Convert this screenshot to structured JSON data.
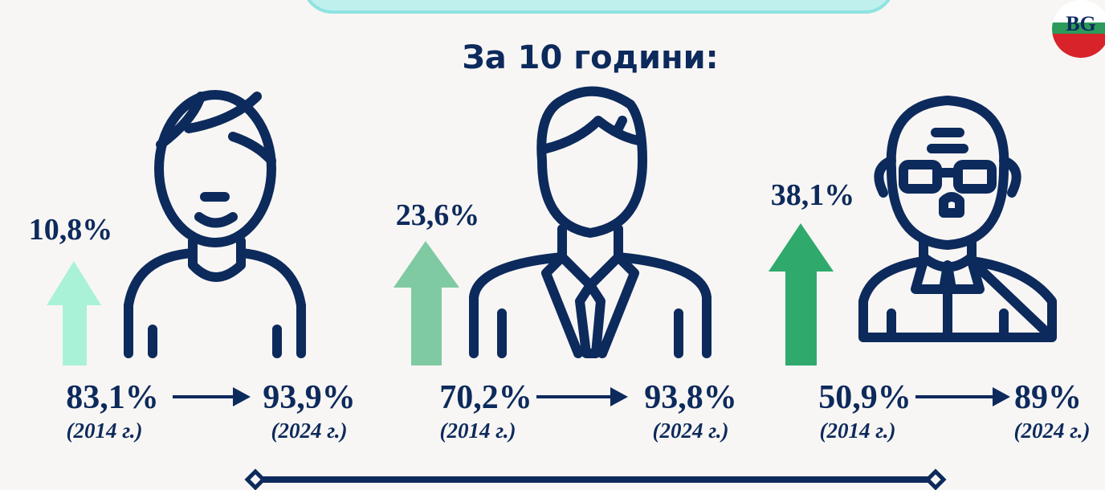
{
  "title": "За 10 години:",
  "badge": "BG",
  "groups": [
    {
      "increase": "10,8%",
      "from": "83,1%",
      "from_year": "(2014 г.)",
      "to": "93,9%",
      "to_year": "(2024 г.)"
    },
    {
      "increase": "23,6%",
      "from": "70,2%",
      "from_year": "(2014 г.)",
      "to": "93,8%",
      "to_year": "(2024 г.)"
    },
    {
      "increase": "38,1%",
      "from": "50,9%",
      "from_year": "(2014 г.)",
      "to": "89%",
      "to_year": "(2024 г.)"
    }
  ]
}
